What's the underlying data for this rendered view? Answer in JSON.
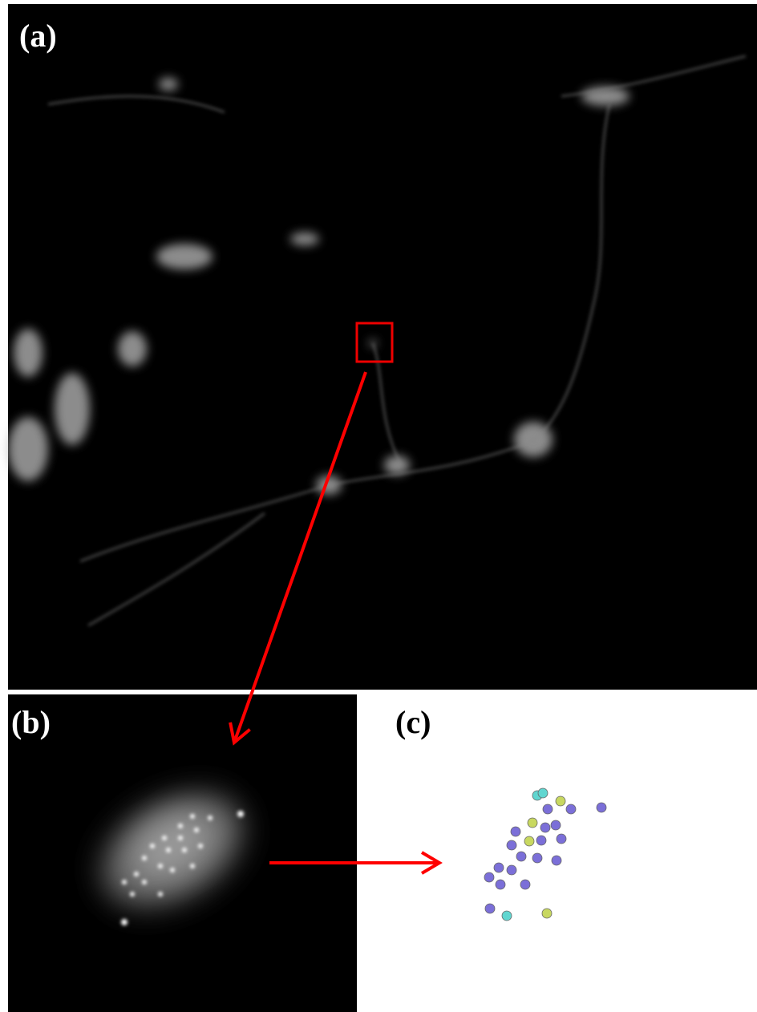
{
  "panels": {
    "a": {
      "label": "(a)"
    },
    "b": {
      "label": "(b)"
    },
    "c": {
      "label": "(c)"
    }
  }
}
